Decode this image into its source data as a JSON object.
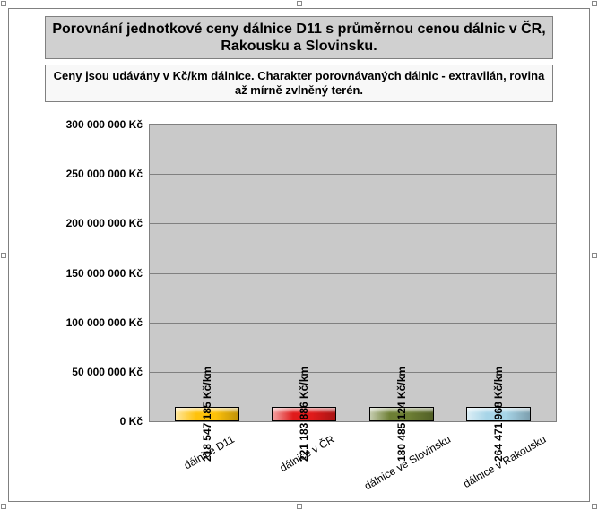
{
  "title": "Porovnání jednotkové ceny dálnice D11 s průměrnou cenou dálnic v ČR, Rakousku a Slovinsku.",
  "subtitle": "Ceny jsou udávány v Kč/km dálnice. Charakter porovnávaných dálnic - extravilán, rovina až mírně zvlněný terén.",
  "chart": {
    "type": "bar",
    "ymax": 300000000,
    "ytick_step": 50000000,
    "yticks": [
      "0 Kč",
      "50 000 000 Kč",
      "100 000 000 Kč",
      "150 000 000 Kč",
      "200 000 000 Kč",
      "250 000 000 Kč",
      "300 000 000 Kč"
    ],
    "plot_bg": "#c9c9c9",
    "grid_color": "#808080",
    "label_fontsize": 12,
    "bars": [
      {
        "category": "dálnice D11",
        "value": 218547185,
        "label": "218 547 185 Kč/km",
        "color": "#ffc20a"
      },
      {
        "category": "dálnice v ČR",
        "value": 221183886,
        "label": "221 183 886 Kč/km",
        "color": "#e01b1b"
      },
      {
        "category": "dálnice ve Slovinsku",
        "value": 180485124,
        "label": "180 485 124 Kč/km",
        "color": "#6d7f34"
      },
      {
        "category": "dálnice v Rakousku",
        "value": 264471968,
        "label": "264 471 968 Kč/km",
        "color": "#a7d5e8"
      }
    ]
  }
}
